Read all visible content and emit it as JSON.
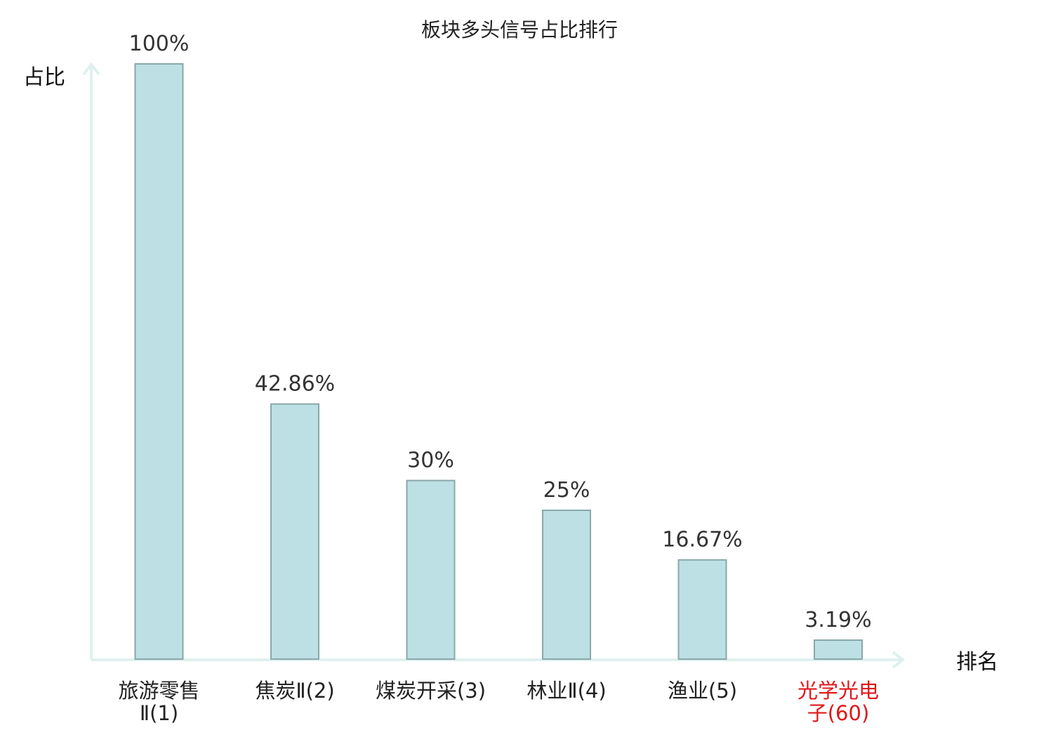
{
  "chart_data": {
    "type": "bar",
    "title": "板块多头信号占比排行",
    "ylabel": "占比",
    "xlabel": "排名",
    "ylim": [
      0,
      100
    ],
    "categories": [
      [
        "旅游零售",
        "Ⅱ(1)"
      ],
      [
        "焦炭Ⅱ(2)"
      ],
      [
        "煤炭开采(3)"
      ],
      [
        "林业Ⅱ(4)"
      ],
      [
        "渔业(5)"
      ],
      [
        "光学光电",
        "子(60)"
      ]
    ],
    "values": [
      100,
      42.86,
      30,
      25,
      16.67,
      3.19
    ],
    "value_labels": [
      "100%",
      "42.86%",
      "30%",
      "25%",
      "16.67%",
      "3.19%"
    ],
    "highlight_index": 5,
    "colors": {
      "bar_fill": "#bce0e3",
      "bar_stroke": "#8aa7aa",
      "axis": "#dff1ee",
      "highlight_text": "#e0161a"
    }
  }
}
